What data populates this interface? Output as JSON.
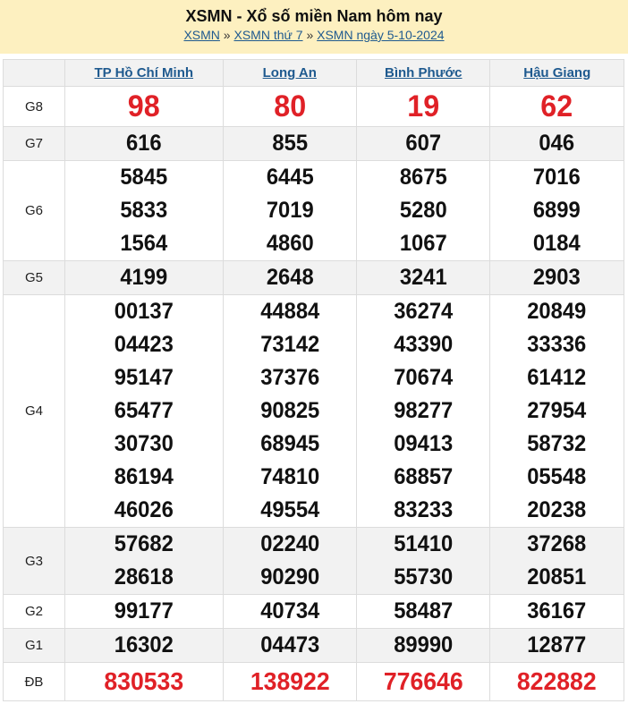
{
  "header": {
    "title": "XSMN - Xổ số miền Nam hôm nay",
    "breadcrumb": [
      "XSMN",
      "XSMN thứ 7",
      "XSMN ngày 5-10-2024"
    ],
    "separator": "»"
  },
  "provinces": [
    "TP Hồ Chí Minh",
    "Long An",
    "Bình Phước",
    "Hậu Giang"
  ],
  "colors": {
    "accent_red": "#e02127",
    "link": "#1f5a8f",
    "header_bg": "#fdf0c0"
  },
  "prizes": [
    {
      "label": "G8",
      "values": [
        [
          "98"
        ],
        [
          "80"
        ],
        [
          "19"
        ],
        [
          "62"
        ]
      ]
    },
    {
      "label": "G7",
      "values": [
        [
          "616"
        ],
        [
          "855"
        ],
        [
          "607"
        ],
        [
          "046"
        ]
      ]
    },
    {
      "label": "G6",
      "values": [
        [
          "5845",
          "5833",
          "1564"
        ],
        [
          "6445",
          "7019",
          "4860"
        ],
        [
          "8675",
          "5280",
          "1067"
        ],
        [
          "7016",
          "6899",
          "0184"
        ]
      ]
    },
    {
      "label": "G5",
      "values": [
        [
          "4199"
        ],
        [
          "2648"
        ],
        [
          "3241"
        ],
        [
          "2903"
        ]
      ]
    },
    {
      "label": "G4",
      "values": [
        [
          "00137",
          "04423",
          "95147",
          "65477",
          "30730",
          "86194",
          "46026"
        ],
        [
          "44884",
          "73142",
          "37376",
          "90825",
          "68945",
          "74810",
          "49554"
        ],
        [
          "36274",
          "43390",
          "70674",
          "98277",
          "09413",
          "68857",
          "83233"
        ],
        [
          "20849",
          "33336",
          "61412",
          "27954",
          "58732",
          "05548",
          "20238"
        ]
      ]
    },
    {
      "label": "G3",
      "values": [
        [
          "57682",
          "28618"
        ],
        [
          "02240",
          "90290"
        ],
        [
          "51410",
          "55730"
        ],
        [
          "37268",
          "20851"
        ]
      ]
    },
    {
      "label": "G2",
      "values": [
        [
          "99177"
        ],
        [
          "40734"
        ],
        [
          "58487"
        ],
        [
          "36167"
        ]
      ]
    },
    {
      "label": "G1",
      "values": [
        [
          "16302"
        ],
        [
          "04473"
        ],
        [
          "89990"
        ],
        [
          "12877"
        ]
      ]
    },
    {
      "label": "ĐB",
      "values": [
        [
          "830533"
        ],
        [
          "138922"
        ],
        [
          "776646"
        ],
        [
          "822882"
        ]
      ]
    }
  ]
}
